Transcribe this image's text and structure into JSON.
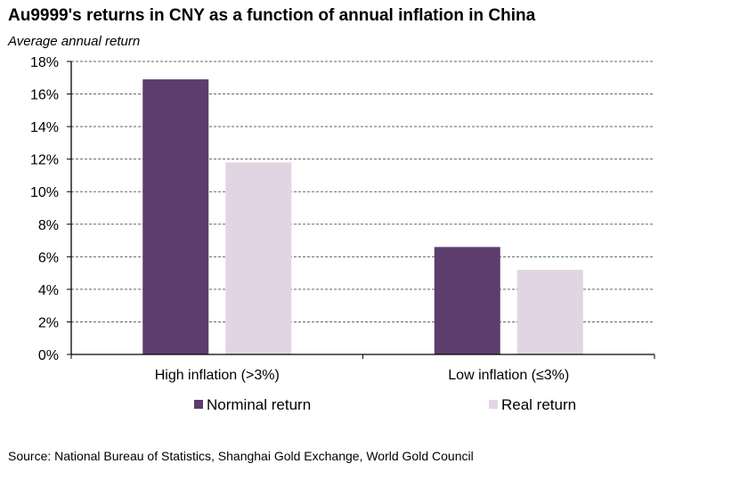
{
  "header": {
    "title": "Au9999's returns in CNY as a function of annual inflation in China",
    "subtitle": "Average annual return"
  },
  "footer": {
    "source": "Source: National Bureau of Statistics, Shanghai Gold Exchange, World Gold Council"
  },
  "chart_data": {
    "type": "bar",
    "title": "Au9999's returns in CNY as a function of annual inflation in China",
    "subtitle": "Average annual return",
    "xlabel": "",
    "ylabel": "Average annual return",
    "categories": [
      "High inflation (>3%)",
      "Low inflation (≤3%)"
    ],
    "series": [
      {
        "name": "Norminal return",
        "color": "#5c3d6e",
        "values": [
          16.9,
          6.6
        ]
      },
      {
        "name": "Real return",
        "color": "#e2d5e3",
        "values": [
          11.8,
          5.2
        ]
      }
    ],
    "ylim": [
      0,
      18
    ],
    "yticks": [
      0,
      2,
      4,
      6,
      8,
      10,
      12,
      14,
      16,
      18
    ],
    "ytick_labels": [
      "0%",
      "2%",
      "4%",
      "6%",
      "8%",
      "10%",
      "12%",
      "14%",
      "16%",
      "18%"
    ],
    "grid": true,
    "grid_style": "dashed",
    "legend_position": "bottom"
  }
}
